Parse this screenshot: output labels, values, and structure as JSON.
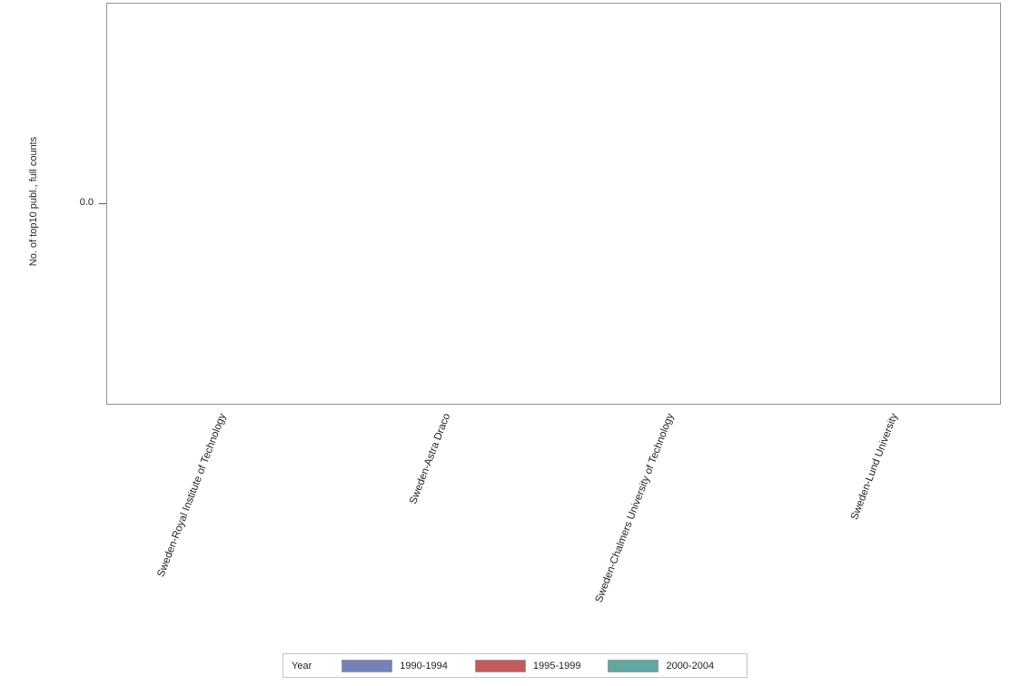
{
  "chart_data": {
    "type": "bar",
    "title": "",
    "categories": [
      "Sweden-Royal Institute of Technology",
      "Sweden-Astra Draco",
      "Sweden-Chalmers University of Technology",
      "Sweden-Lund University"
    ],
    "series": [
      {
        "name": "1990-1994",
        "color": "#7482B6",
        "values": [
          0,
          0,
          0,
          0
        ]
      },
      {
        "name": "1995-1999",
        "color": "#C25B5B",
        "values": [
          0,
          0,
          0,
          0
        ]
      },
      {
        "name": "2000-2004",
        "color": "#60A7A0",
        "values": [
          0,
          0,
          0,
          0
        ]
      }
    ],
    "xlabel": "",
    "ylabel": "No. of top10 publ., full counts",
    "yticks": [
      "0.0"
    ],
    "axis_note": "single 0.0 tick at vertical center of plot; no bars rendered (all values zero)",
    "grid": false,
    "legend": {
      "title": "Year",
      "position": "bottom-center"
    }
  },
  "colors": {
    "plot_border": "#8B9298",
    "legend_border": "#C4C4C4",
    "text": "#1F1F1F",
    "background": "#FFFFFF"
  }
}
